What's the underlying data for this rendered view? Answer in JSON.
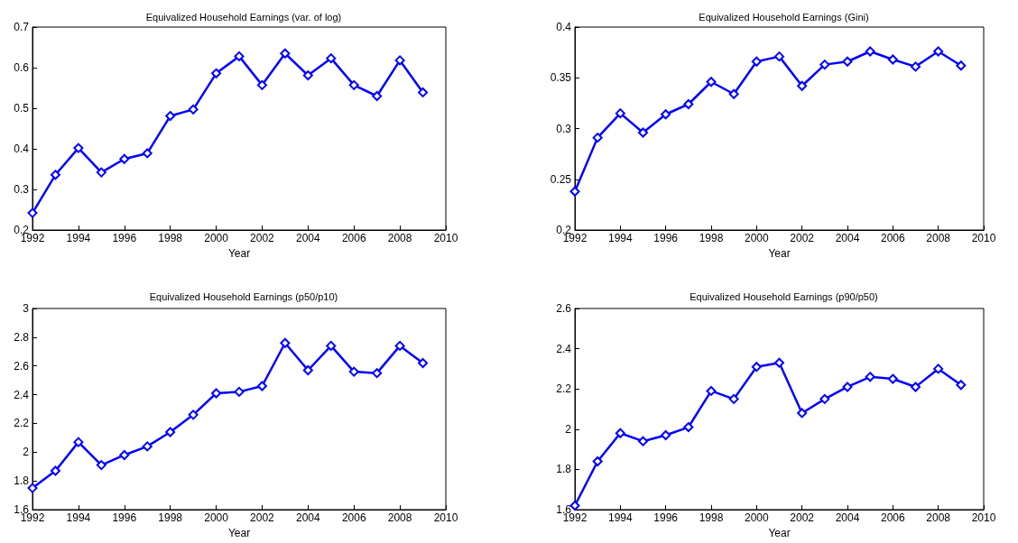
{
  "chart_data": [
    {
      "type": "line",
      "title": "Equivalized Household Earnings (var. of log)",
      "xlabel": "Year",
      "x": [
        1992,
        1993,
        1994,
        1995,
        1996,
        1997,
        1998,
        1999,
        2000,
        2001,
        2002,
        2003,
        2004,
        2005,
        2006,
        2007,
        2008,
        2009
      ],
      "series": [
        {
          "color": "#0000ff",
          "values": [
            0.242,
            0.336,
            0.402,
            0.342,
            0.375,
            0.389,
            0.481,
            0.497,
            0.586,
            0.628,
            0.557,
            0.635,
            0.581,
            0.623,
            0.557,
            0.53,
            0.618,
            0.539
          ]
        }
      ],
      "xlim": [
        1992,
        2010
      ],
      "xticks": [
        1992,
        1994,
        1996,
        1998,
        2000,
        2002,
        2004,
        2006,
        2008,
        2010
      ],
      "ylim": [
        0.2,
        0.7
      ],
      "yticks": [
        0.2,
        0.3,
        0.4,
        0.5,
        0.6,
        0.7
      ],
      "marker": "diamond",
      "line_style": "solid"
    },
    {
      "type": "line",
      "title": "Equivalized Household Earnings (Gini)",
      "xlabel": "Year",
      "x": [
        1992,
        1993,
        1994,
        1995,
        1996,
        1997,
        1998,
        1999,
        2000,
        2001,
        2002,
        2003,
        2004,
        2005,
        2006,
        2007,
        2008,
        2009
      ],
      "series": [
        {
          "color": "#0000ff",
          "values": [
            0.238,
            0.291,
            0.315,
            0.296,
            0.314,
            0.324,
            0.346,
            0.334,
            0.366,
            0.371,
            0.342,
            0.363,
            0.366,
            0.376,
            0.368,
            0.361,
            0.376,
            0.362
          ]
        }
      ],
      "xlim": [
        1992,
        2010
      ],
      "xticks": [
        1992,
        1994,
        1996,
        1998,
        2000,
        2002,
        2004,
        2006,
        2008,
        2010
      ],
      "ylim": [
        0.2,
        0.4
      ],
      "yticks": [
        0.2,
        0.25,
        0.3,
        0.35,
        0.4
      ],
      "marker": "diamond",
      "line_style": "solid"
    },
    {
      "type": "line",
      "title": "Equivalized Household Earnings (p50/p10)",
      "xlabel": "Year",
      "x": [
        1992,
        1993,
        1994,
        1995,
        1996,
        1997,
        1998,
        1999,
        2000,
        2001,
        2002,
        2003,
        2004,
        2005,
        2006,
        2007,
        2008,
        2009
      ],
      "series": [
        {
          "color": "#0000ff",
          "values": [
            1.75,
            1.87,
            2.07,
            1.91,
            1.98,
            2.04,
            2.14,
            2.26,
            2.41,
            2.42,
            2.46,
            2.76,
            2.57,
            2.74,
            2.56,
            2.55,
            2.74,
            2.62
          ]
        }
      ],
      "xlim": [
        1992,
        2010
      ],
      "xticks": [
        1992,
        1994,
        1996,
        1998,
        2000,
        2002,
        2004,
        2006,
        2008,
        2010
      ],
      "ylim": [
        1.6,
        3
      ],
      "yticks": [
        1.6,
        1.8,
        2,
        2.2,
        2.4,
        2.6,
        2.8,
        3
      ],
      "marker": "diamond",
      "line_style": "solid"
    },
    {
      "type": "line",
      "title": "Equivalized Household Earnings (p90/p50)",
      "xlabel": "Year",
      "x": [
        1992,
        1993,
        1994,
        1995,
        1996,
        1997,
        1998,
        1999,
        2000,
        2001,
        2002,
        2003,
        2004,
        2005,
        2006,
        2007,
        2008,
        2009
      ],
      "series": [
        {
          "color": "#0000ff",
          "values": [
            1.62,
            1.84,
            1.98,
            1.94,
            1.97,
            2.01,
            2.19,
            2.15,
            2.31,
            2.33,
            2.08,
            2.15,
            2.21,
            2.26,
            2.25,
            2.21,
            2.3,
            2.22
          ]
        }
      ],
      "xlim": [
        1992,
        2010
      ],
      "xticks": [
        1992,
        1994,
        1996,
        1998,
        2000,
        2002,
        2004,
        2006,
        2008,
        2010
      ],
      "ylim": [
        1.6,
        2.6
      ],
      "yticks": [
        1.6,
        1.8,
        2,
        2.2,
        2.4,
        2.6
      ],
      "marker": "diamond",
      "line_style": "solid"
    }
  ]
}
